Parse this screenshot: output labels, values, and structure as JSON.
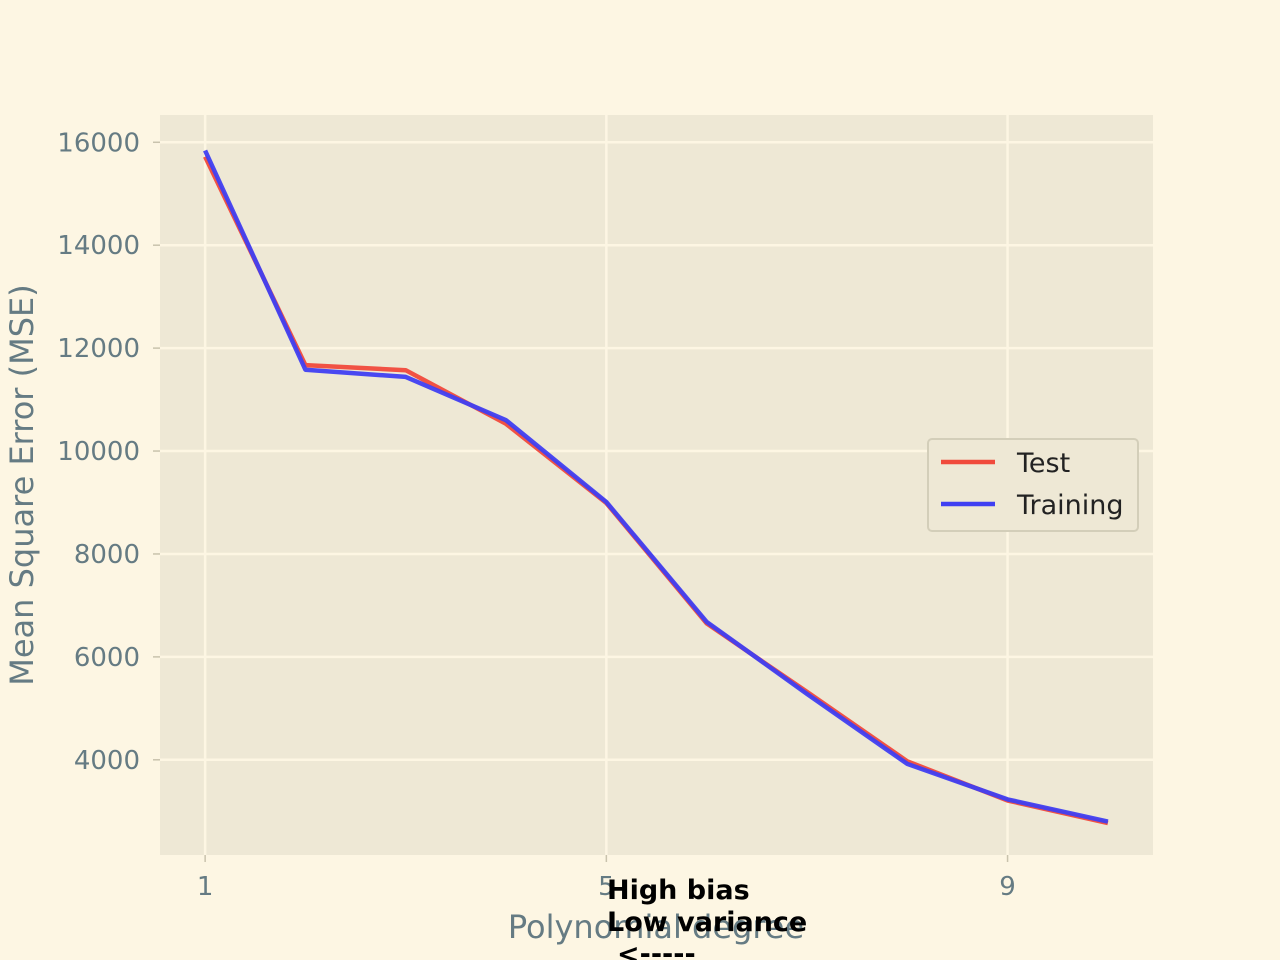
{
  "chart_data": {
    "type": "line",
    "xlabel": "Polynomial degree",
    "ylabel": "Mean Square Error (MSE)",
    "xlim": [
      0.55,
      10.45
    ],
    "ylim": [
      2150,
      16530
    ],
    "xticks": [
      1,
      5,
      9
    ],
    "yticks": [
      4000,
      6000,
      8000,
      10000,
      12000,
      14000,
      16000
    ],
    "grid": true,
    "legend_position": "center-right",
    "background_color": "#eee8d5",
    "page_color": "#fdf6e3",
    "series": [
      {
        "name": "Test",
        "color": "#f04a3c",
        "x": [
          1,
          2,
          3,
          4,
          5,
          6,
          7,
          8,
          9,
          10
        ],
        "y": [
          15720,
          11670,
          11570,
          10530,
          8990,
          6650,
          5320,
          3970,
          3210,
          2770
        ]
      },
      {
        "name": "Training",
        "color": "#3f3ff2",
        "x": [
          1,
          2,
          3,
          4,
          5,
          6,
          7,
          8,
          9,
          10
        ],
        "y": [
          15840,
          11580,
          11440,
          10600,
          9010,
          6680,
          5280,
          3920,
          3230,
          2800
        ]
      }
    ],
    "annotations": [
      {
        "lines": [
          "High bias",
          "Low variance",
          "<-----"
        ],
        "x": 5
      }
    ]
  }
}
